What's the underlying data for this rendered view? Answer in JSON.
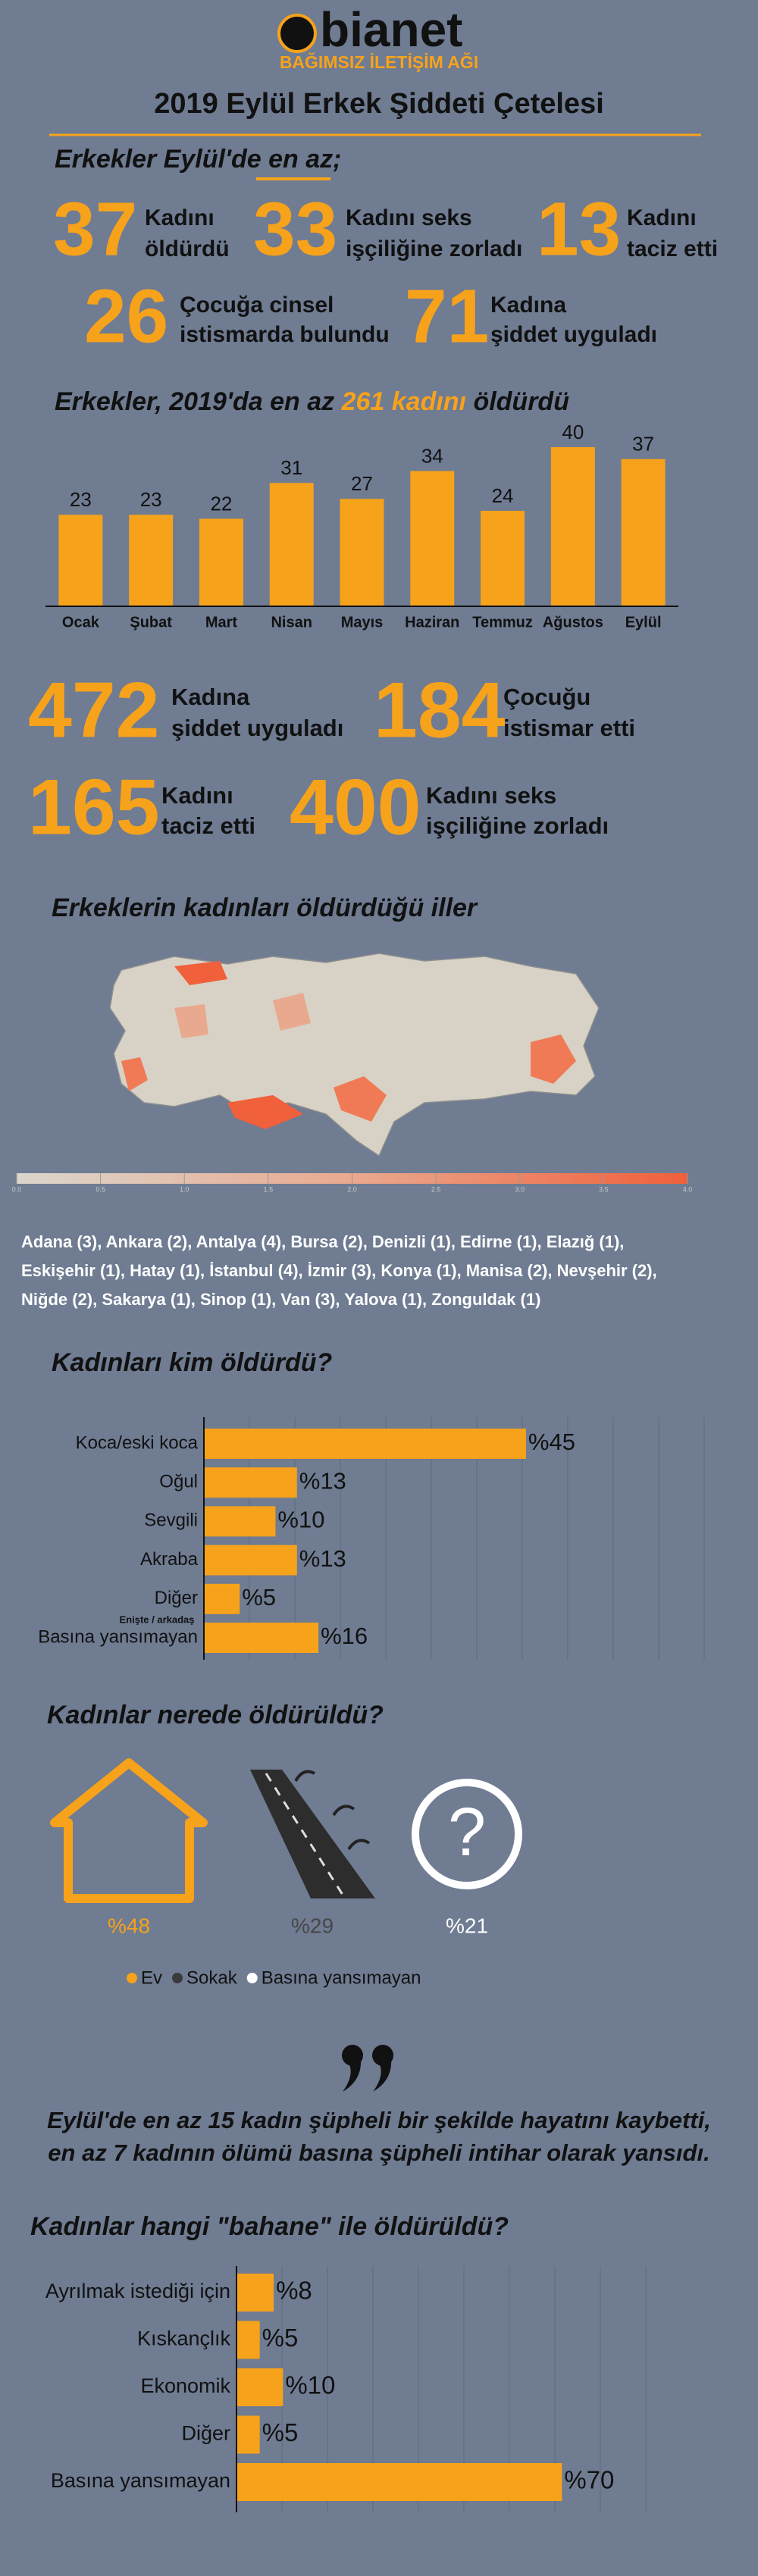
{
  "header": {
    "logo": "bianet",
    "tagline": "BAĞIMSIZ İLETİŞİM AĞI",
    "title": "2019 Eylül Erkek Şiddeti Çetelesi"
  },
  "september": {
    "heading": "Erkekler Eylül'de en az;",
    "stats": [
      {
        "value": 37,
        "label": [
          "Kadını",
          "öldürdü"
        ]
      },
      {
        "value": 33,
        "label": [
          "Kadını seks",
          "işçiliğine zorladı"
        ]
      },
      {
        "value": 13,
        "label": [
          "Kadını",
          "taciz etti"
        ]
      },
      {
        "value": 26,
        "label": [
          "Çocuğa cinsel",
          "istismarda bulundu"
        ]
      },
      {
        "value": 71,
        "label": [
          "Kadına",
          "şiddet uyguladı"
        ]
      }
    ]
  },
  "year": {
    "stats": [
      {
        "value": 472,
        "label": [
          "Kadına",
          "şiddet uyguladı"
        ]
      },
      {
        "value": 184,
        "label": [
          "Çocuğu",
          "istismar etti"
        ]
      },
      {
        "value": 165,
        "label": [
          "Kadını",
          "taciz etti"
        ]
      },
      {
        "value": 400,
        "label": [
          "Kadını seks",
          "işçiliğine zorladı"
        ]
      }
    ]
  },
  "map": {
    "title": "Erkeklerin kadınları öldürdüğü iller",
    "scale_ticks": [
      {
        "value": 0,
        "label": "0.0"
      },
      {
        "value": 0.5,
        "label": "0.5"
      },
      {
        "value": 1,
        "label": "1.0"
      },
      {
        "value": 1.5,
        "label": "1.5"
      },
      {
        "value": 2,
        "label": "2.0"
      },
      {
        "value": 2.5,
        "label": "2.5"
      },
      {
        "value": 3,
        "label": "3.0"
      },
      {
        "value": 3.5,
        "label": "3.5"
      },
      {
        "value": 4,
        "label": "4.0"
      }
    ],
    "scale_lim": [
      0,
      4
    ],
    "provinces": [
      "Adana (3), Ankara (2), Antalya (4), Bursa (2), Denizli (1), Edirne (1), Elazığ (1),",
      "Eskişehir (1), Hatay (1), İstanbul (4), İzmir (3), Konya (1), Manisa (2), Nevşehir (2),",
      "Niğde (2), Sakarya (1), Sinop (1), Van (3), Yalova (1), Zonguldak (1)"
    ]
  },
  "chart_data": [
    {
      "type": "bar",
      "title_parts": [
        "Erkekler, 2019'da en az ",
        "261 kadını",
        " öldürdü"
      ],
      "categories": [
        "Ocak",
        "Şubat",
        "Mart",
        "Nisan",
        "Mayıs",
        "Haziran",
        "Temmuz",
        "Ağustos",
        "Eylül"
      ],
      "values": [
        23,
        23,
        22,
        31,
        27,
        34,
        24,
        40,
        37
      ],
      "color": "#f7a21b",
      "ylim": [
        0,
        40
      ]
    },
    {
      "type": "hbar",
      "title": "Kadınları kim öldürdü?",
      "categories": [
        "Koca/eski koca",
        "Oğul",
        "Sevgili",
        "Akraba",
        "Diğer",
        "Basına yansımayan"
      ],
      "values": [
        45,
        13,
        10,
        13,
        5,
        16
      ],
      "value_labels": [
        "%45",
        "%13",
        "%10",
        "%13",
        "%5",
        "%16"
      ],
      "annotation": "Enişte / arkadaş",
      "color": "#f7a21b",
      "xlim": [
        0,
        70
      ]
    },
    {
      "type": "pictogram",
      "title": "Kadınlar nerede öldürüldü?",
      "categories": [
        "Ev",
        "Sokak",
        "Basına yansımayan"
      ],
      "values": [
        48,
        29,
        21
      ],
      "value_labels": [
        "%48",
        "%29",
        "%21"
      ],
      "colors": [
        "#f7a21b",
        "#3a3a3a",
        "#ffffff"
      ]
    },
    {
      "type": "hbar",
      "title": "Kadınlar hangi \"bahane\" ile öldürüldü?",
      "categories": [
        "Ayrılmak istediği için",
        "Kıskançlık",
        "Ekonomik",
        "Diğer",
        "Basına yansımayan"
      ],
      "values": [
        8,
        5,
        10,
        5,
        70
      ],
      "value_labels": [
        "%8",
        "%5",
        "%10",
        "%5",
        "%70"
      ],
      "color": "#f7a21b",
      "xlim": [
        0,
        90
      ]
    }
  ],
  "quote": [
    "Eylül'de en az 15 kadın şüpheli bir şekilde hayatını kaybetti,",
    "en az 7 kadının ölümü basına şüpheli  intihar olarak yansıdı."
  ]
}
